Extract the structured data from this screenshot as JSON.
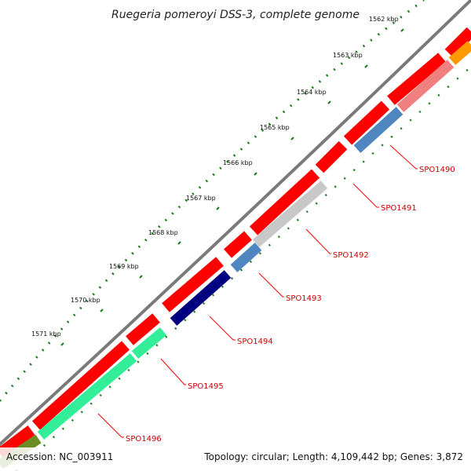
{
  "title": "Ruegeria pomeroyi DSS-3, complete genome",
  "footer": {
    "accession": "Accession: NC_003911",
    "summary": "Topology: circular; Length: 4,109,442 bp; Genes: 3,872"
  },
  "scale": {
    "ticks": [
      "1562 kbp",
      "1563 kbp",
      "1564 kbp",
      "1565 kbp",
      "1566 kbp",
      "1567 kbp",
      "1568 kbp",
      "1569 kbp",
      "1570 kbp",
      "1571 kbp"
    ]
  },
  "genes": {
    "labels": [
      "SPO1490",
      "SPO1491",
      "SPO1492",
      "SPO1493",
      "SPO1494",
      "SPO1495",
      "SPO1496"
    ]
  },
  "colors": {
    "backbone": "#7a7a7a",
    "outer_track": "#ff0000",
    "label": "#cc0000",
    "tick": "#1a7a1a",
    "cog_salmon": "#f08080",
    "cog_orange": "#ff9900",
    "cog_steel_blue": "#4f86c0",
    "cog_light_gray": "#c8c8c8",
    "cog_navy": "#000080",
    "cog_spring_green": "#33ee99",
    "cog_olive": "#6b8e23"
  }
}
